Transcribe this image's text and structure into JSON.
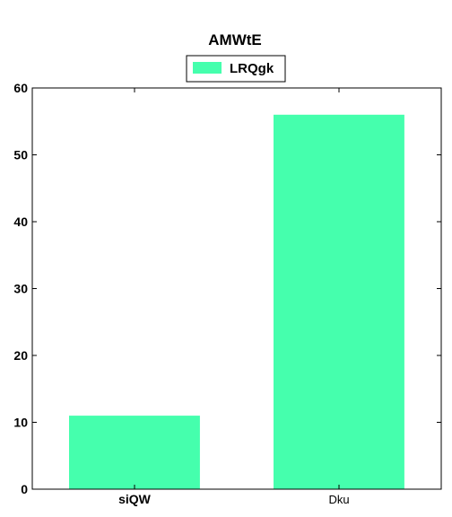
{
  "chart_data": {
    "type": "bar",
    "title": "AMWtE",
    "categories": [
      "siQW",
      "Dku"
    ],
    "series": [
      {
        "name": "LRQgk",
        "values": [
          11,
          56
        ],
        "color": "#45ffad"
      }
    ],
    "ylim": [
      0,
      60
    ],
    "yticks": [
      0,
      10,
      20,
      30,
      40,
      50,
      60
    ],
    "xlabel": "",
    "ylabel": "",
    "legend": "top-center",
    "grid": false
  }
}
